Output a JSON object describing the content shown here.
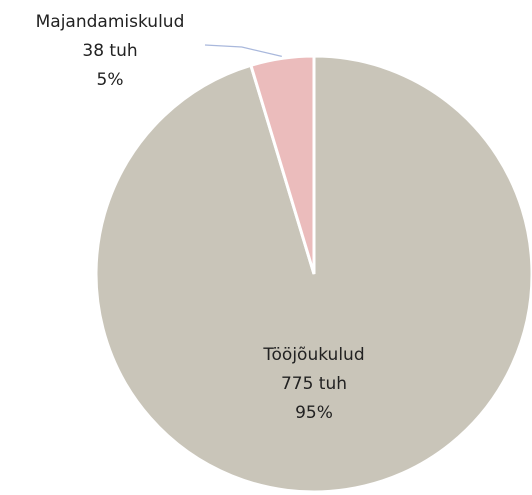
{
  "chart_data": {
    "type": "pie",
    "categories": [
      "Tööjõukulud",
      "Majandamiskulud"
    ],
    "values": [
      775,
      38
    ],
    "value_labels": [
      "775 tuh",
      "38 tuh"
    ],
    "percents": [
      95,
      5
    ],
    "percent_labels": [
      "95%",
      "5%"
    ],
    "colors": [
      "#c9c5b9",
      "#ebbcbc"
    ]
  }
}
